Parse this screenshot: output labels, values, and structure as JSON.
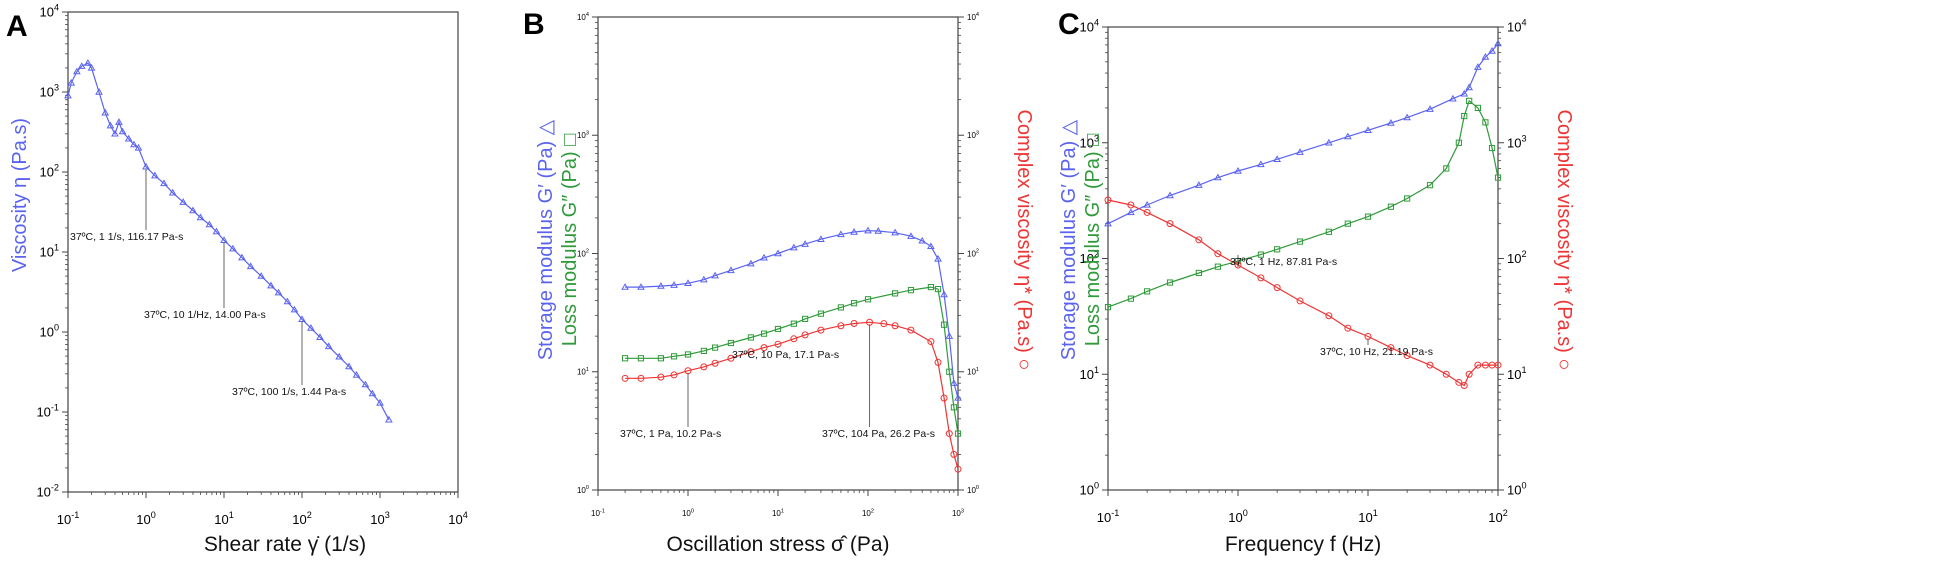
{
  "colors": {
    "blue": "#5a63f0",
    "green": "#2f9a3a",
    "red": "#ee3434",
    "axis": "#444444"
  },
  "panels": [
    {
      "letter": "A",
      "xlabel": "Shear rate γ̇ (1/s)",
      "ylabel_left": [
        {
          "text": "Viscosity η (Pa.s)",
          "color": "blue"
        }
      ],
      "xticks": [
        {
          "base": "10",
          "exp": "-1"
        },
        {
          "base": "10",
          "exp": "0"
        },
        {
          "base": "10",
          "exp": "1"
        },
        {
          "base": "10",
          "exp": "2"
        },
        {
          "base": "10",
          "exp": "3"
        },
        {
          "base": "10",
          "exp": "4"
        }
      ],
      "yticks_left": [
        {
          "base": "10",
          "exp": "-2"
        },
        {
          "base": "10",
          "exp": "-1"
        },
        {
          "base": "10",
          "exp": "0"
        },
        {
          "base": "10",
          "exp": "1"
        },
        {
          "base": "10",
          "exp": "2"
        },
        {
          "base": "10",
          "exp": "3"
        },
        {
          "base": "10",
          "exp": "4"
        }
      ],
      "annotations": [
        {
          "text": "37ºC, 1 1/s, 116.17 Pa-s"
        },
        {
          "text": "37ºC, 10 1/Hz, 14.00 Pa-s"
        },
        {
          "text": "37ºC, 100 1/s, 1.44 Pa-s"
        }
      ]
    },
    {
      "letter": "B",
      "xlabel": "Oscillation stress σ̂ (Pa)",
      "ylabel_left": [
        {
          "text": "Storage modulus G′ (Pa) △",
          "color": "blue"
        },
        {
          "text": "Loss modulus G″ (Pa) □",
          "color": "green"
        }
      ],
      "ylabel_right": [
        {
          "text": "Complex viscosity η* (Pa.s) ○",
          "color": "red"
        }
      ],
      "xticks": [
        {
          "base": "10",
          "exp": "-1"
        },
        {
          "base": "10",
          "exp": "0"
        },
        {
          "base": "10",
          "exp": "1"
        },
        {
          "base": "10",
          "exp": "2"
        },
        {
          "base": "10",
          "exp": "3"
        }
      ],
      "yticks_left": [
        {
          "base": "10",
          "exp": "0"
        },
        {
          "base": "10",
          "exp": "1"
        },
        {
          "base": "10",
          "exp": "2"
        },
        {
          "base": "10",
          "exp": "3"
        },
        {
          "base": "10",
          "exp": "4"
        }
      ],
      "yticks_right": [
        {
          "base": "10",
          "exp": "0"
        },
        {
          "base": "10",
          "exp": "1"
        },
        {
          "base": "10",
          "exp": "2"
        },
        {
          "base": "10",
          "exp": "3"
        },
        {
          "base": "10",
          "exp": "4"
        }
      ],
      "annotations": [
        {
          "text": "37ºC, 1 Pa, 10.2 Pa-s"
        },
        {
          "text": "37ºC, 10 Pa, 17.1 Pa-s"
        },
        {
          "text": "37ºC, 104 Pa, 26.2 Pa-s"
        }
      ]
    },
    {
      "letter": "C",
      "xlabel": "Frequency f (Hz)",
      "ylabel_left": [
        {
          "text": "Storage modulus G′ (Pa) △",
          "color": "blue"
        },
        {
          "text": "Loss modulus G″ (Pa) □",
          "color": "green"
        }
      ],
      "ylabel_right": [
        {
          "text": "Complex viscosity η* (Pa.s) ○",
          "color": "red"
        }
      ],
      "xticks": [
        {
          "base": "10",
          "exp": "-1"
        },
        {
          "base": "10",
          "exp": "0"
        },
        {
          "base": "10",
          "exp": "1"
        },
        {
          "base": "10",
          "exp": "2"
        }
      ],
      "yticks_left": [
        {
          "base": "10",
          "exp": "0"
        },
        {
          "base": "10",
          "exp": "1"
        },
        {
          "base": "10",
          "exp": "2"
        },
        {
          "base": "10",
          "exp": "3"
        },
        {
          "base": "10",
          "exp": "4"
        }
      ],
      "yticks_right": [
        {
          "base": "10",
          "exp": "0"
        },
        {
          "base": "10",
          "exp": "1"
        },
        {
          "base": "10",
          "exp": "2"
        },
        {
          "base": "10",
          "exp": "3"
        },
        {
          "base": "10",
          "exp": "4"
        }
      ],
      "annotations": [
        {
          "text": "37ºC, 1 Hz, 87.81 Pa-s"
        },
        {
          "text": "37ºC, 10 Hz, 21.19 Pa-s"
        }
      ]
    }
  ],
  "chart_data": [
    {
      "type": "line",
      "title": "A",
      "xlabel": "Shear rate γ̇ (1/s)",
      "ylabel": "Viscosity η (Pa.s)",
      "xscale": "log",
      "yscale": "log",
      "xlim": [
        0.1,
        10000
      ],
      "ylim": [
        0.01,
        10000
      ],
      "series": [
        {
          "name": "Viscosity η",
          "color": "blue",
          "marker": "triangle",
          "x": [
            0.1,
            0.11,
            0.13,
            0.15,
            0.18,
            0.2,
            0.25,
            0.3,
            0.35,
            0.4,
            0.45,
            0.5,
            0.6,
            0.7,
            0.8,
            1,
            1.3,
            1.7,
            2.2,
            3,
            4,
            5,
            6.5,
            8,
            10,
            13,
            17,
            22,
            30,
            40,
            50,
            65,
            80,
            100,
            130,
            170,
            220,
            300,
            400,
            500,
            650,
            800,
            1000,
            1300
          ],
          "y": [
            900,
            1300,
            1800,
            2100,
            2300,
            2000,
            1000,
            550,
            380,
            300,
            420,
            320,
            260,
            220,
            200,
            116.17,
            90,
            72,
            55,
            42,
            33,
            27,
            22,
            18,
            14.0,
            11,
            8.5,
            6.6,
            5,
            3.8,
            3.1,
            2.4,
            1.9,
            1.44,
            1.12,
            0.86,
            0.66,
            0.49,
            0.37,
            0.29,
            0.22,
            0.17,
            0.13,
            0.08
          ]
        }
      ],
      "annotations": [
        {
          "text": "37ºC, 1 1/s, 116.17 Pa-s",
          "x": 1,
          "y": 116.17
        },
        {
          "text": "37ºC, 10 1/Hz, 14.00 Pa-s",
          "x": 10,
          "y": 14.0
        },
        {
          "text": "37ºC, 100 1/s, 1.44 Pa-s",
          "x": 100,
          "y": 1.44
        }
      ]
    },
    {
      "type": "line",
      "title": "B",
      "xlabel": "Oscillation stress σ̂ (Pa)",
      "ylabel": "Storage modulus G′ (Pa) / Loss modulus G″ (Pa)",
      "ylabel_right": "Complex viscosity η* (Pa.s)",
      "xscale": "log",
      "yscale": "log",
      "xlim": [
        0.1,
        1000
      ],
      "ylim": [
        1,
        10000
      ],
      "ylim_right": [
        1,
        10000
      ],
      "series": [
        {
          "name": "G′",
          "color": "blue",
          "marker": "triangle",
          "axis": "left",
          "x": [
            0.2,
            0.3,
            0.5,
            0.7,
            1,
            1.5,
            2,
            3,
            5,
            7,
            10,
            15,
            20,
            30,
            50,
            70,
            100,
            130,
            200,
            300,
            400,
            500,
            600,
            700,
            800,
            900,
            1000
          ],
          "y": [
            52,
            52,
            53,
            54,
            56,
            60,
            65,
            72,
            82,
            92,
            100,
            112,
            120,
            132,
            145,
            152,
            156,
            155,
            150,
            140,
            128,
            115,
            90,
            45,
            20,
            8,
            6
          ]
        },
        {
          "name": "G″",
          "color": "green",
          "marker": "square",
          "axis": "left",
          "x": [
            0.2,
            0.3,
            0.5,
            0.7,
            1,
            1.5,
            2,
            3,
            5,
            7,
            10,
            15,
            20,
            30,
            50,
            70,
            100,
            200,
            300,
            500,
            600,
            700,
            800,
            900,
            1000
          ],
          "y": [
            13,
            13,
            13,
            13.5,
            14,
            15,
            16,
            17.5,
            19.5,
            21,
            23,
            25.5,
            28,
            31,
            35,
            38,
            41,
            46,
            49,
            52,
            50,
            25,
            10,
            5,
            3
          ]
        },
        {
          "name": "η*",
          "color": "red",
          "marker": "circle",
          "axis": "right",
          "x": [
            0.2,
            0.3,
            0.5,
            0.7,
            1,
            1.5,
            2,
            3,
            5,
            7,
            10,
            15,
            20,
            30,
            50,
            70,
            104,
            150,
            200,
            300,
            500,
            600,
            700,
            800,
            900,
            1000
          ],
          "y": [
            8.8,
            8.8,
            9.0,
            9.4,
            10.2,
            11,
            11.8,
            13,
            14.8,
            16,
            17.1,
            19,
            20.5,
            22.5,
            24.5,
            25.6,
            26.2,
            25.5,
            24.5,
            22.5,
            18,
            12,
            6,
            3,
            2,
            1.5
          ]
        }
      ],
      "annotations": [
        {
          "text": "37ºC, 1 Pa, 10.2 Pa-s",
          "x": 1,
          "y": 10.2
        },
        {
          "text": "37ºC, 10 Pa, 17.1 Pa-s",
          "x": 10,
          "y": 17.1
        },
        {
          "text": "37ºC, 104 Pa, 26.2 Pa-s",
          "x": 104,
          "y": 26.2
        }
      ]
    },
    {
      "type": "line",
      "title": "C",
      "xlabel": "Frequency f (Hz)",
      "ylabel": "Storage modulus G′ (Pa) / Loss modulus G″ (Pa)",
      "ylabel_right": "Complex viscosity η* (Pa.s)",
      "xscale": "log",
      "yscale": "log",
      "xlim": [
        0.1,
        100
      ],
      "ylim": [
        1,
        10000
      ],
      "ylim_right": [
        1,
        10000
      ],
      "series": [
        {
          "name": "G′",
          "color": "blue",
          "marker": "triangle",
          "axis": "left",
          "x": [
            0.1,
            0.15,
            0.2,
            0.3,
            0.5,
            0.7,
            1,
            1.5,
            2,
            3,
            5,
            7,
            10,
            15,
            20,
            30,
            45,
            55,
            60,
            70,
            80,
            90,
            100
          ],
          "y": [
            200,
            250,
            290,
            350,
            430,
            500,
            570,
            650,
            720,
            830,
            1000,
            1130,
            1280,
            1480,
            1650,
            1950,
            2400,
            2650,
            3000,
            4500,
            5500,
            6200,
            7200
          ]
        },
        {
          "name": "G″",
          "color": "green",
          "marker": "square",
          "axis": "left",
          "x": [
            0.1,
            0.15,
            0.2,
            0.3,
            0.5,
            0.7,
            1,
            1.5,
            2,
            3,
            5,
            7,
            10,
            15,
            20,
            30,
            40,
            50,
            55,
            60,
            70,
            80,
            90,
            100
          ],
          "y": [
            38,
            45,
            52,
            62,
            75,
            85,
            95,
            108,
            120,
            140,
            170,
            200,
            230,
            280,
            330,
            430,
            600,
            1000,
            1700,
            2300,
            2000,
            1500,
            900,
            500
          ]
        },
        {
          "name": "η*",
          "color": "red",
          "marker": "circle",
          "axis": "right",
          "x": [
            0.1,
            0.15,
            0.2,
            0.3,
            0.5,
            0.7,
            1,
            1.5,
            2,
            3,
            5,
            7,
            10,
            15,
            20,
            30,
            40,
            50,
            55,
            60,
            70,
            80,
            90,
            100
          ],
          "y": [
            320,
            290,
            250,
            200,
            145,
            110,
            87.81,
            68,
            56,
            43,
            32,
            25,
            21.19,
            17,
            14.5,
            12,
            10,
            8.5,
            8,
            10,
            12,
            12,
            12,
            12
          ]
        }
      ],
      "annotations": [
        {
          "text": "37ºC, 1 Hz, 87.81 Pa-s",
          "x": 1,
          "y": 87.81
        },
        {
          "text": "37ºC, 10 Hz, 21.19 Pa-s",
          "x": 10,
          "y": 21.19
        }
      ]
    }
  ]
}
